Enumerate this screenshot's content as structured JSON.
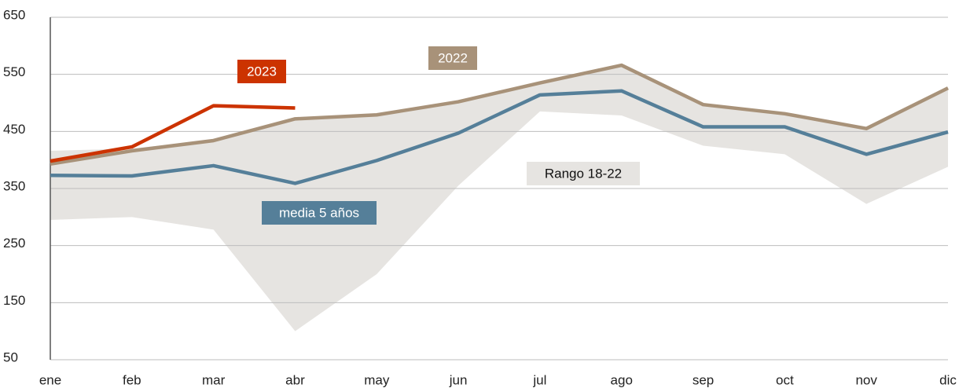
{
  "chart_data": {
    "type": "line",
    "categories": [
      "ene",
      "feb",
      "mar",
      "abr",
      "may",
      "jun",
      "jul",
      "ago",
      "sep",
      "oct",
      "nov",
      "dic"
    ],
    "ylim": [
      50,
      650
    ],
    "yticks": [
      50,
      150,
      250,
      350,
      450,
      550,
      650
    ],
    "grid": true,
    "range": {
      "name": "Rango 18-22",
      "color": "#e6e4e1",
      "upper": [
        416,
        420,
        435,
        475,
        480,
        502,
        537,
        568,
        498,
        482,
        456,
        527
      ],
      "lower": [
        295,
        300,
        278,
        100,
        200,
        355,
        485,
        478,
        425,
        410,
        323,
        388
      ]
    },
    "series": [
      {
        "name": "2022",
        "color": "#a89279",
        "values": [
          393,
          416,
          434,
          472,
          479,
          502,
          535,
          566,
          497,
          481,
          455,
          526
        ]
      },
      {
        "name": "media 5 años",
        "color": "#557f99",
        "values": [
          373,
          372,
          390,
          359,
          399,
          447,
          514,
          521,
          458,
          458,
          410,
          449
        ]
      },
      {
        "name": "2023",
        "color": "#cc3300",
        "values": [
          398,
          423,
          495,
          491,
          null,
          null,
          null,
          null,
          null,
          null,
          null,
          null
        ]
      }
    ]
  }
}
